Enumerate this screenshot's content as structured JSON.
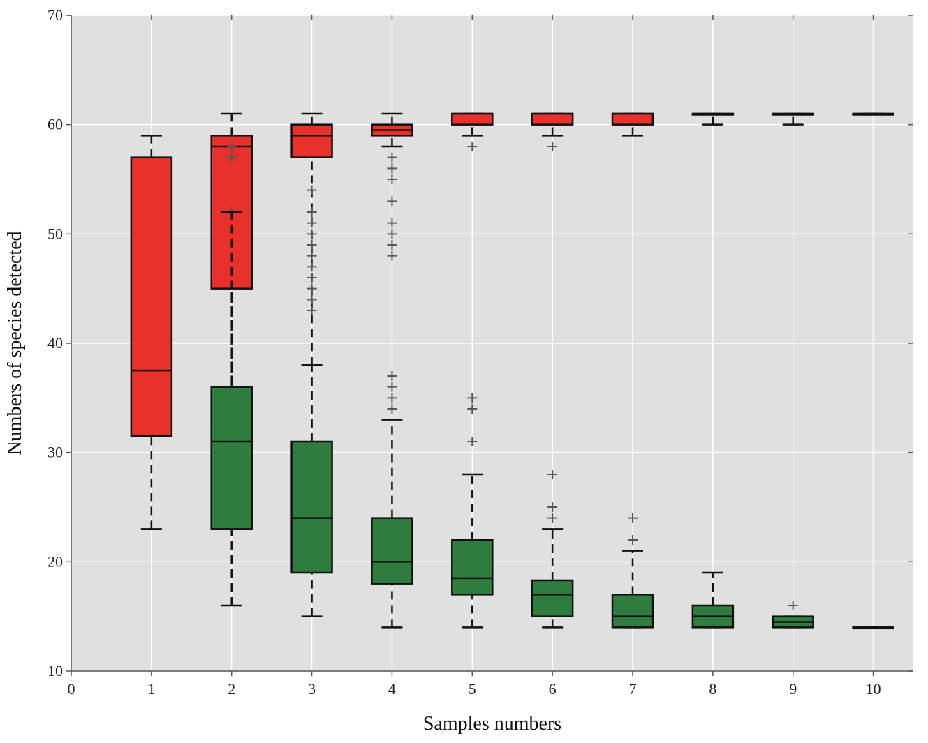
{
  "chart_data": {
    "type": "box",
    "xlabel": "Samples numbers",
    "ylabel": "Numbers of species detected",
    "xlim": [
      0,
      10.5
    ],
    "ylim": [
      10,
      70
    ],
    "x_ticks": [
      0,
      1,
      2,
      3,
      4,
      5,
      6,
      7,
      8,
      9,
      10
    ],
    "y_ticks": [
      10,
      20,
      30,
      40,
      50,
      60,
      70
    ],
    "grid": true,
    "background": "#e0e0e0",
    "series": [
      {
        "color": "#e8312a",
        "boxes": [
          {
            "x": 1,
            "whislo": 23,
            "q1": 31.5,
            "med": 37.5,
            "q3": 57,
            "whishi": 59,
            "fliers": []
          },
          {
            "x": 2,
            "whislo": 35,
            "q1": 45,
            "med": 58,
            "q3": 59,
            "whishi": 61,
            "fliers": [
              52,
              57,
              58
            ]
          },
          {
            "x": 3,
            "whislo": 38,
            "q1": 57,
            "med": 59,
            "q3": 60,
            "whishi": 61,
            "fliers": [
              43,
              44,
              45,
              46,
              47,
              48,
              49,
              50,
              51,
              52,
              54
            ]
          },
          {
            "x": 4,
            "whislo": 58,
            "q1": 59,
            "med": 59.5,
            "q3": 60,
            "whishi": 61,
            "fliers": [
              48,
              49,
              50,
              51,
              53,
              55,
              56,
              57
            ]
          },
          {
            "x": 5,
            "whislo": 59,
            "q1": 60,
            "med": 61,
            "q3": 61,
            "whishi": 61,
            "fliers": [
              58
            ]
          },
          {
            "x": 6,
            "whislo": 59,
            "q1": 60,
            "med": 61,
            "q3": 61,
            "whishi": 61,
            "fliers": [
              58
            ]
          },
          {
            "x": 7,
            "whislo": 59,
            "q1": 60,
            "med": 61,
            "q3": 61,
            "whishi": 61,
            "fliers": []
          },
          {
            "x": 8,
            "whislo": 60,
            "q1": 61,
            "med": 61,
            "q3": 61,
            "whishi": 61,
            "fliers": []
          },
          {
            "x": 9,
            "whislo": 60,
            "q1": 61,
            "med": 61,
            "q3": 61,
            "whishi": 61,
            "fliers": []
          },
          {
            "x": 10,
            "whislo": 61,
            "q1": 61,
            "med": 61,
            "q3": 61,
            "whishi": 61,
            "fliers": []
          }
        ]
      },
      {
        "color": "#2e7d3e",
        "boxes": [
          {
            "x": 2,
            "whislo": 16,
            "q1": 23,
            "med": 31,
            "q3": 36,
            "whishi": 52,
            "fliers": []
          },
          {
            "x": 3,
            "whislo": 15,
            "q1": 19,
            "med": 24,
            "q3": 31,
            "whishi": 38,
            "fliers": []
          },
          {
            "x": 4,
            "whislo": 14,
            "q1": 18,
            "med": 20,
            "q3": 24,
            "whishi": 33,
            "fliers": [
              34,
              35,
              36,
              37
            ]
          },
          {
            "x": 5,
            "whislo": 14,
            "q1": 17,
            "med": 18.5,
            "q3": 22,
            "whishi": 28,
            "fliers": [
              31,
              34,
              35
            ]
          },
          {
            "x": 6,
            "whislo": 14,
            "q1": 15,
            "med": 17,
            "q3": 18.3,
            "whishi": 23,
            "fliers": [
              24,
              25,
              28
            ]
          },
          {
            "x": 7,
            "whislo": 14,
            "q1": 14,
            "med": 15,
            "q3": 17,
            "whishi": 21,
            "fliers": [
              22,
              24
            ]
          },
          {
            "x": 8,
            "whislo": 14,
            "q1": 14,
            "med": 15,
            "q3": 16,
            "whishi": 19,
            "fliers": []
          },
          {
            "x": 9,
            "whislo": 14,
            "q1": 14,
            "med": 14.5,
            "q3": 15,
            "whishi": 15,
            "fliers": [
              16
            ]
          },
          {
            "x": 10,
            "whislo": 14,
            "q1": 14,
            "med": 14,
            "q3": 14,
            "whishi": 14,
            "fliers": []
          }
        ]
      }
    ]
  }
}
